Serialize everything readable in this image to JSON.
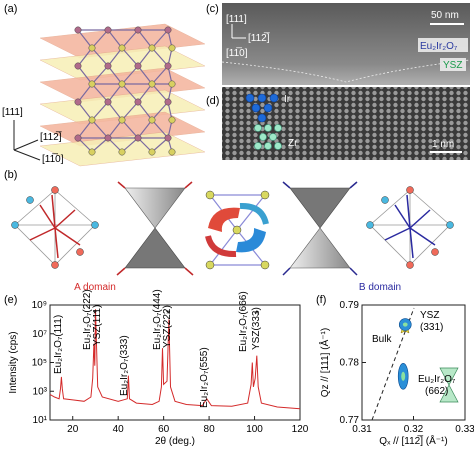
{
  "panel_labels": [
    "(a)",
    "(b)",
    "(c)",
    "(d)",
    "(e)",
    "(f)"
  ],
  "panel_a": {
    "directions": [
      "[111]",
      "[112̅]",
      "[11̅0]"
    ]
  },
  "panel_b": {
    "domains": [
      "A domain",
      "B domain"
    ]
  },
  "panel_c": {
    "scale_bar": "50 nm",
    "directions": [
      "[111]",
      "[112̅]",
      "[11̅0]"
    ],
    "layers": [
      "Eu₂Ir₂O₇",
      "YSZ"
    ]
  },
  "panel_d": {
    "scale_bar": "1 nm",
    "atoms": [
      "Ir",
      "Zr"
    ]
  },
  "chart_data": [
    {
      "type": "line",
      "x_label": "2θ (deg.)",
      "y_label": "Intensity (cps)",
      "log_y": true,
      "color": "#d42a2a",
      "xlim": [
        10,
        120
      ],
      "ylim": [
        10,
        1000000000
      ],
      "xticks": [
        20,
        40,
        60,
        80,
        100,
        120
      ],
      "yticks": [
        {
          "value": 10,
          "label": "10¹"
        },
        {
          "value": 1000,
          "label": "10³"
        },
        {
          "value": 100000,
          "label": "10⁵"
        },
        {
          "value": 10000000,
          "label": "10⁷"
        },
        {
          "value": 1000000000,
          "label": "10⁹"
        }
      ],
      "peak_labels": [
        "Eu₂Ir₂O₇(111)",
        "Eu₂Ir₂O₇(222)",
        "YSZ(111)",
        "Eu₂Ir₂O₇(333)",
        "Eu₂Ir₂O₇(444)",
        "YSZ(222)",
        "Eu₂Ir₂O₇(555)",
        "Eu₂Ir₂O₇(666)",
        "YSZ(333)"
      ],
      "markers": [
        "*",
        "*",
        "*"
      ],
      "x": [
        10,
        12,
        14,
        14.6,
        15,
        15.4,
        16,
        20,
        25,
        28,
        28.8,
        29.3,
        29.7,
        30,
        30.4,
        31,
        33,
        40,
        44,
        44.5,
        45,
        48,
        55,
        58,
        59,
        59.5,
        60,
        61.5,
        62.3,
        63,
        65,
        70,
        77,
        79,
        81,
        90,
        97,
        98.5,
        99,
        99.5,
        100.3,
        101,
        101.6,
        103,
        110,
        120
      ],
      "values": [
        600,
        400,
        300,
        1500,
        10000,
        1500,
        300,
        250,
        200,
        400,
        8000,
        2000000,
        60000,
        500000000,
        3000000,
        2000,
        400,
        200,
        300,
        12000,
        300,
        150,
        120,
        200,
        2000,
        1000000,
        3000,
        5000,
        100000000,
        2000,
        200,
        120,
        100,
        300,
        100,
        90,
        150,
        3000,
        100000,
        2000,
        8000,
        300000,
        2000,
        150,
        80,
        60
      ]
    },
    {
      "type": "scatter",
      "x_label": "Qₓ // [112̅] (Å⁻¹)",
      "y_label": "Qz // [111] (Å⁻¹)",
      "color": "#2a8fd8",
      "xlim": [
        0.31,
        0.33
      ],
      "ylim": [
        0.77,
        0.79
      ],
      "xticks": [
        0.31,
        0.32,
        0.33
      ],
      "yticks": [
        0.77,
        0.78,
        0.79
      ],
      "annotations": [
        "YSZ",
        "(331)",
        "Bulk",
        "Eu₂Ir₂O₇",
        "(662)"
      ],
      "x": [
        0.3184,
        0.318
      ],
      "values": [
        0.7866,
        0.7776
      ]
    }
  ]
}
